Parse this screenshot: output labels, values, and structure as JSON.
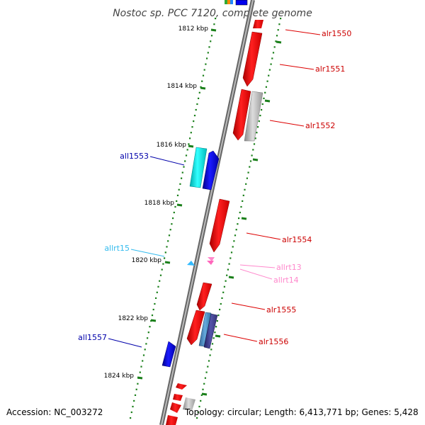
{
  "title": "Nostoc sp. PCC 7120, complete genome",
  "accession": "Accession: NC_003272",
  "topology": "Topology: circular; Length: 6,413,771 bp; Genes: 5,428",
  "scale_labels": [
    "1812 kbp",
    "1814 kbp",
    "1816 kbp",
    "1818 kbp",
    "1820 kbp",
    "1822 kbp",
    "1824 kbp"
  ],
  "gene_labels": {
    "alr1550": "alr1550",
    "alr1551": "alr1551",
    "alr1552": "alr1552",
    "all1553": "all1553",
    "alr1554": "alr1554",
    "allrt15": "allrt15",
    "allrt13": "allrt13",
    "allrt14": "allrt14",
    "alr1555": "alr1555",
    "alr1556": "alr1556",
    "all1557": "all1557"
  },
  "colors": {
    "plus_strand_gene": "#ff0000",
    "minus_strand_gene": "#0000cc",
    "trna_plus": "#ff77bb",
    "trna_minus": "#33bbff",
    "other_gene": "#999999",
    "cyan_gene": "#00dddd",
    "tick": "#1a7f1a"
  }
}
